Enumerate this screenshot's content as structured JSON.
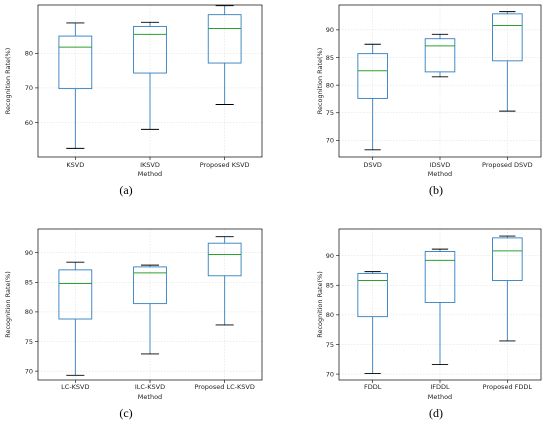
{
  "chart_data": [
    {
      "type": "box",
      "panel_label": "(a)",
      "xlabel": "Method",
      "ylabel": "Recognition Rate(%)",
      "ylim": [
        50,
        94
      ],
      "yticks": [
        60,
        70,
        80
      ],
      "grid": true,
      "categories": [
        "KSVD",
        "IKSVD",
        "Proposed KSVD"
      ],
      "boxes": [
        {
          "min": 52.5,
          "q1": 69.8,
          "median": 81.8,
          "q3": 85.0,
          "max": 88.8
        },
        {
          "min": 58.0,
          "q1": 74.3,
          "median": 85.5,
          "q3": 87.8,
          "max": 89.0
        },
        {
          "min": 65.2,
          "q1": 77.2,
          "median": 87.2,
          "q3": 91.2,
          "max": 93.8
        }
      ]
    },
    {
      "type": "box",
      "panel_label": "(b)",
      "xlabel": "Method",
      "ylabel": "Recognition Rate(%)",
      "ylim": [
        67,
        94.5
      ],
      "yticks": [
        70,
        75,
        80,
        85,
        90
      ],
      "grid": true,
      "categories": [
        "DSVD",
        "IDSVD",
        "Proposed DSVD"
      ],
      "boxes": [
        {
          "min": 68.3,
          "q1": 77.6,
          "median": 82.6,
          "q3": 85.7,
          "max": 87.4
        },
        {
          "min": 81.5,
          "q1": 82.4,
          "median": 87.1,
          "q3": 88.4,
          "max": 89.2
        },
        {
          "min": 75.3,
          "q1": 84.4,
          "median": 90.8,
          "q3": 92.9,
          "max": 93.3
        }
      ]
    },
    {
      "type": "box",
      "panel_label": "(c)",
      "xlabel": "Method",
      "ylabel": "Recognition Rate(%)",
      "ylim": [
        68.5,
        94
      ],
      "yticks": [
        70,
        75,
        80,
        85,
        90
      ],
      "grid": true,
      "categories": [
        "LC-KSVD",
        "ILC-KSVD",
        "Proposed LC-KSVD"
      ],
      "boxes": [
        {
          "min": 69.3,
          "q1": 78.8,
          "median": 84.8,
          "q3": 87.1,
          "max": 88.4
        },
        {
          "min": 72.9,
          "q1": 81.4,
          "median": 86.6,
          "q3": 87.6,
          "max": 87.9
        },
        {
          "min": 77.8,
          "q1": 86.1,
          "median": 89.7,
          "q3": 91.6,
          "max": 92.7
        }
      ]
    },
    {
      "type": "box",
      "panel_label": "(d)",
      "xlabel": "Method",
      "ylabel": "Recognition Rate(%)",
      "ylim": [
        69,
        94.5
      ],
      "yticks": [
        70,
        75,
        80,
        85,
        90
      ],
      "grid": true,
      "categories": [
        "FDDL",
        "IFDDL",
        "Proposed FDDL"
      ],
      "boxes": [
        {
          "min": 70.1,
          "q1": 79.7,
          "median": 85.8,
          "q3": 87.0,
          "max": 87.3
        },
        {
          "min": 71.6,
          "q1": 82.1,
          "median": 89.2,
          "q3": 90.7,
          "max": 91.1
        },
        {
          "min": 75.6,
          "q1": 85.8,
          "median": 90.8,
          "q3": 93.0,
          "max": 93.3
        }
      ]
    }
  ]
}
